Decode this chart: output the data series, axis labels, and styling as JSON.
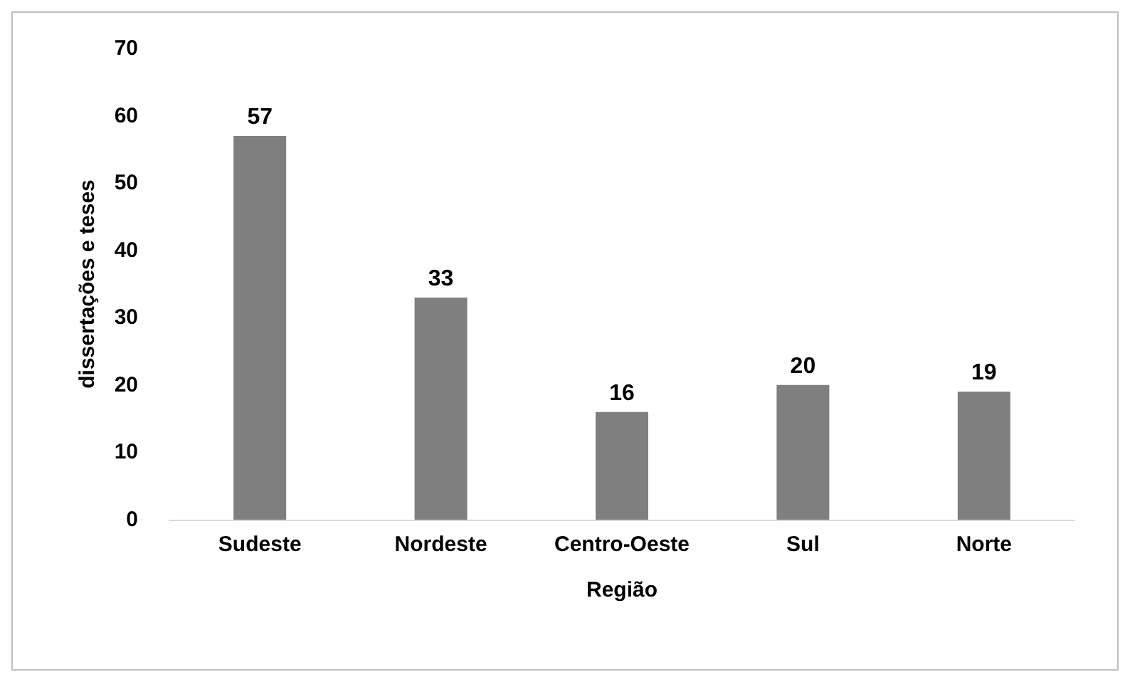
{
  "chart_data": {
    "type": "bar",
    "xlabel": "Região",
    "ylabel": "dissertações e teses",
    "categories": [
      "Sudeste",
      "Nordeste",
      "Centro-Oeste",
      "Sul",
      "Norte"
    ],
    "values": [
      57,
      33,
      16,
      20,
      19
    ],
    "color": "#7f7f7f",
    "ylim": [
      0,
      70
    ],
    "yticks": [
      0,
      10,
      20,
      30,
      40,
      50,
      60,
      70
    ],
    "grid": false,
    "data_labels": true
  }
}
